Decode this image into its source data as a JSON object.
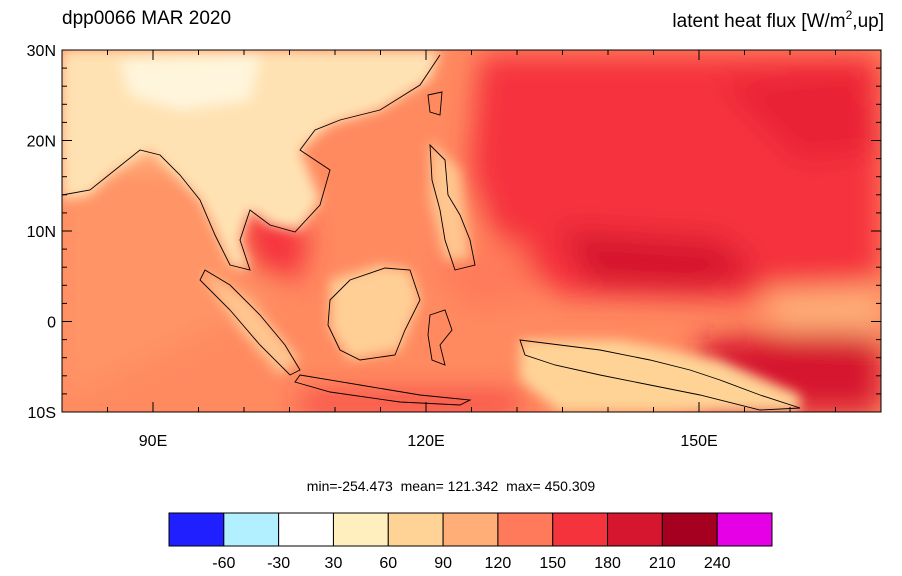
{
  "title_left": "dpp0066 MAR 2020",
  "title_right": {
    "prefix": "latent heat flux [W/m",
    "sup": "2",
    "suffix": ",up]"
  },
  "map": {
    "lon_range": [
      80,
      170
    ],
    "lat_range": [
      -10,
      30
    ],
    "x_ticks": [
      {
        "lon": 90,
        "label": "90E"
      },
      {
        "lon": 120,
        "label": "120E"
      },
      {
        "lon": 150,
        "label": "150E"
      }
    ],
    "y_ticks": [
      {
        "lat": 30,
        "label": "30N"
      },
      {
        "lat": 20,
        "label": "20N"
      },
      {
        "lat": 10,
        "label": "10N"
      },
      {
        "lat": 0,
        "label": "0"
      },
      {
        "lat": -10,
        "label": "10S"
      }
    ]
  },
  "stats": {
    "min_label": "min=-254.473",
    "mean_label": "mean= 121.342",
    "max_label": "max= 450.309"
  },
  "colorbar": {
    "colors": [
      "#1f1fff",
      "#b3f0ff",
      "#ffffff",
      "#ffefbf",
      "#ffd396",
      "#ffae78",
      "#ff7a5a",
      "#f5333c",
      "#d6152e",
      "#a60021",
      "#e600e6"
    ],
    "labels": [
      "-60",
      "-30",
      "30",
      "60",
      "90",
      "120",
      "150",
      "180",
      "210",
      "240"
    ]
  }
}
